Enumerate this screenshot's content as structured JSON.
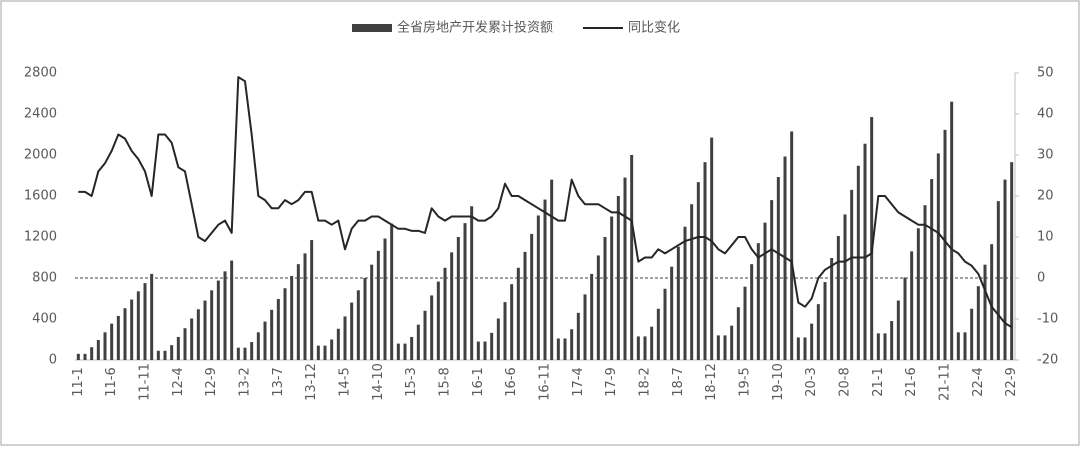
{
  "chart_data": {
    "type": "bar_line",
    "categories": [
      "11-1",
      null,
      null,
      null,
      null,
      "11-6",
      null,
      null,
      null,
      null,
      "11-11",
      null,
      null,
      null,
      null,
      "12-4",
      null,
      null,
      null,
      null,
      "12-9",
      null,
      null,
      null,
      null,
      "13-2",
      null,
      null,
      null,
      null,
      "13-7",
      null,
      null,
      null,
      null,
      "13-12",
      null,
      null,
      null,
      null,
      "14-5",
      null,
      null,
      null,
      null,
      "14-10",
      null,
      null,
      null,
      null,
      "15-3",
      null,
      null,
      null,
      null,
      "15-8",
      null,
      null,
      null,
      null,
      "16-1",
      null,
      null,
      null,
      null,
      "16-6",
      null,
      null,
      null,
      null,
      "16-11",
      null,
      null,
      null,
      null,
      "17-4",
      null,
      null,
      null,
      null,
      "17-9",
      null,
      null,
      null,
      null,
      "18-2",
      null,
      null,
      null,
      null,
      "18-7",
      null,
      null,
      null,
      null,
      "18-12",
      null,
      null,
      null,
      null,
      "19-5",
      null,
      null,
      null,
      null,
      "19-10",
      null,
      null,
      null,
      null,
      "20-3",
      null,
      null,
      null,
      null,
      "20-8",
      null,
      null,
      null,
      null,
      "21-1",
      null,
      null,
      null,
      null,
      "21-6",
      null,
      null,
      null,
      null,
      "21-11",
      null,
      null,
      null,
      null,
      "22-4",
      null,
      null,
      null,
      null,
      "22-9"
    ],
    "series": [
      {
        "name": "全省房地产开发累计投资额",
        "color": "#404040",
        "type": "bar",
        "values": [
          60,
          60,
          125,
          195,
          270,
          355,
          430,
          505,
          590,
          670,
          750,
          840,
          90,
          90,
          145,
          225,
          310,
          405,
          495,
          580,
          680,
          775,
          865,
          970,
          120,
          120,
          175,
          270,
          375,
          490,
          595,
          700,
          820,
          935,
          1040,
          1170,
          140,
          140,
          200,
          305,
          425,
          560,
          680,
          800,
          930,
          1065,
          1185,
          1330,
          160,
          160,
          225,
          345,
          480,
          630,
          765,
          900,
          1050,
          1200,
          1335,
          1500,
          180,
          180,
          265,
          405,
          565,
          740,
          900,
          1055,
          1230,
          1410,
          1565,
          1760,
          210,
          210,
          300,
          460,
          640,
          840,
          1020,
          1200,
          1400,
          1600,
          1780,
          2000,
          230,
          230,
          325,
          500,
          695,
          910,
          1105,
          1300,
          1520,
          1735,
          1930,
          2170,
          240,
          240,
          335,
          515,
          715,
          935,
          1140,
          1340,
          1560,
          1785,
          1985,
          2230,
          220,
          220,
          355,
          545,
          760,
          995,
          1210,
          1420,
          1660,
          1895,
          2110,
          2370,
          260,
          260,
          380,
          580,
          805,
          1060,
          1285,
          1510,
          1765,
          2015,
          2245,
          2520,
          270,
          270,
          500,
          720,
          930,
          1130,
          1550,
          1760,
          1930
        ]
      },
      {
        "name": "同比变化",
        "color": "#262626",
        "type": "line",
        "axis": "y2",
        "values": [
          21,
          21,
          20,
          26,
          28,
          31,
          35,
          34,
          31,
          29,
          26,
          20,
          35,
          35,
          33,
          27,
          26,
          18,
          10,
          9,
          11,
          13,
          14,
          11,
          49,
          48,
          35,
          20,
          19,
          17,
          17,
          19,
          18,
          19,
          21,
          21,
          14,
          14,
          13,
          14,
          7,
          12,
          14,
          14,
          15,
          15,
          14,
          13,
          12,
          12,
          11.5,
          11.5,
          11,
          17,
          15,
          14,
          15,
          15,
          15,
          15,
          14,
          14,
          15,
          17,
          23,
          20,
          20,
          19,
          18,
          17,
          16,
          15,
          14,
          14,
          24,
          20,
          18,
          18,
          18,
          17,
          16,
          16,
          15,
          14,
          4,
          5,
          5,
          7,
          6,
          7,
          8,
          9,
          9.5,
          10,
          10,
          9,
          7,
          6,
          8,
          10,
          10,
          7,
          5,
          6,
          7,
          6,
          5,
          4,
          -6,
          -7,
          -5,
          0,
          2,
          3,
          4,
          4,
          5,
          5,
          5,
          6,
          20,
          20,
          18,
          16,
          15,
          14,
          13,
          13,
          12,
          11,
          9,
          7,
          6,
          4,
          3,
          1,
          -3,
          -7,
          -9,
          -11,
          -12
        ]
      }
    ],
    "ylim": [
      0,
      2800
    ],
    "yticks": [
      0,
      400,
      800,
      1200,
      1600,
      2000,
      2400,
      2800
    ],
    "y2lim": [
      -20,
      50
    ],
    "y2ticks": [
      -20,
      -10,
      0,
      10,
      20,
      30,
      40,
      50
    ]
  }
}
